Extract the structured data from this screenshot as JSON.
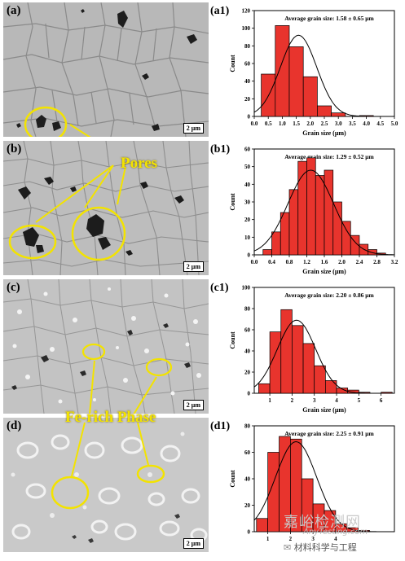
{
  "sem_panels": [
    {
      "label": "(a)",
      "scale_bar": "2 μm"
    },
    {
      "label": "(b)",
      "scale_bar": "2 μm"
    },
    {
      "label": "(c)",
      "scale_bar": "2 μm"
    },
    {
      "label": "(d)",
      "scale_bar": "2 μm"
    }
  ],
  "annotations": {
    "pores": "Pores",
    "fe_rich": "Fe-rich Phase"
  },
  "watermark": {
    "line1": "嘉峪检测网",
    "line2": "AnyTesting.com",
    "account": "材料科学与工程"
  },
  "chart_data": [
    {
      "type": "bar",
      "label": "(a1)",
      "title": "Average grain size: 1.58 ± 0.65 μm",
      "xlabel": "Grain size (μm)",
      "ylabel": "Count",
      "x_ticks": [
        "0.0",
        "0.5",
        "1.0",
        "1.5",
        "2.0",
        "2.5",
        "3.0",
        "3.5",
        "4.0",
        "4.5",
        "5.0"
      ],
      "y_ticks": [
        "0",
        "20",
        "40",
        "60",
        "80",
        "100",
        "120"
      ],
      "xlim": [
        0,
        5
      ],
      "ylim": [
        0,
        120
      ],
      "bin_edges": [
        0.25,
        0.75,
        1.25,
        1.75,
        2.25,
        2.75,
        3.25,
        3.75,
        4.25,
        4.75
      ],
      "values": [
        48,
        103,
        79,
        45,
        12,
        4,
        0,
        1,
        0
      ],
      "fit": {
        "mean": 1.58,
        "sd": 0.65,
        "peak": 92
      },
      "bar_color": "#e8342d"
    },
    {
      "type": "bar",
      "label": "(b1)",
      "title": "Average grain size: 1.29 ± 0.52 μm",
      "xlabel": "Grain size (μm)",
      "ylabel": "Count",
      "x_ticks": [
        "0.0",
        "0.4",
        "0.8",
        "1.2",
        "1.6",
        "2.0",
        "2.4",
        "2.8",
        "3.2"
      ],
      "y_ticks": [
        "0",
        "10",
        "20",
        "30",
        "40",
        "50",
        "60"
      ],
      "xlim": [
        0,
        3.2
      ],
      "ylim": [
        0,
        60
      ],
      "bin_edges": [
        0.2,
        0.4,
        0.6,
        0.8,
        1.0,
        1.2,
        1.4,
        1.6,
        1.8,
        2.0,
        2.2,
        2.4,
        2.6,
        2.8,
        3.0
      ],
      "values": [
        3,
        13,
        24,
        37,
        53,
        55,
        45,
        48,
        30,
        19,
        11,
        6,
        3,
        1
      ],
      "fit": {
        "mean": 1.29,
        "sd": 0.52,
        "peak": 48
      },
      "bar_color": "#e8342d"
    },
    {
      "type": "bar",
      "label": "(c1)",
      "title": "Average grain size: 2.20 ± 0.86 μm",
      "xlabel": "Grain size (μm)",
      "ylabel": "Count",
      "x_ticks": [
        "1",
        "2",
        "3",
        "4",
        "5",
        "6"
      ],
      "y_ticks": [
        "0",
        "20",
        "40",
        "60",
        "80",
        "100"
      ],
      "xlim": [
        0.3,
        6.6
      ],
      "ylim": [
        0,
        100
      ],
      "bin_edges": [
        0.5,
        1.0,
        1.5,
        2.0,
        2.5,
        3.0,
        3.5,
        4.0,
        4.5,
        5.0,
        5.5,
        6.0,
        6.5
      ],
      "values": [
        9,
        58,
        79,
        64,
        47,
        26,
        12,
        5,
        3,
        1,
        0,
        1
      ],
      "fit": {
        "mean": 2.2,
        "sd": 0.86,
        "peak": 69
      },
      "bar_color": "#e8342d"
    },
    {
      "type": "bar",
      "label": "(d1)",
      "title": "Average grain size: 2.25 ± 0.91 μm",
      "xlabel": "Grain size (μm)",
      "ylabel": "Count",
      "x_ticks": [
        "1",
        "2",
        "3",
        "4"
      ],
      "y_ticks": [
        "0",
        "20",
        "40",
        "60",
        "80"
      ],
      "xlim": [
        0.4,
        6.6
      ],
      "ylim": [
        0,
        80
      ],
      "bin_edges": [
        0.5,
        1.0,
        1.5,
        2.0,
        2.5,
        3.0,
        3.5,
        4.0,
        4.5,
        5.0,
        5.5,
        6.0
      ],
      "values": [
        10,
        60,
        72,
        70,
        40,
        21,
        16,
        6,
        3,
        1,
        0
      ],
      "fit": {
        "mean": 2.25,
        "sd": 0.91,
        "peak": 68
      },
      "bar_color": "#e8342d"
    }
  ]
}
